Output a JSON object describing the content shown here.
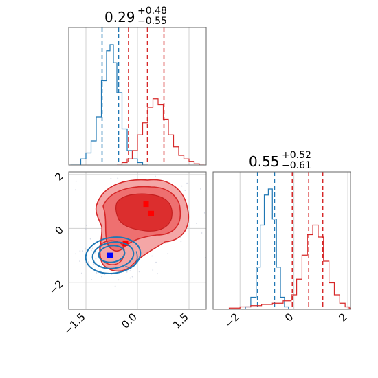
{
  "chart_data": [
    {
      "panel": "marginal-1",
      "type": "histogram",
      "title": {
        "median": "0.29",
        "plus": "+0.48",
        "minus": "−0.55"
      },
      "xlim": [
        -2.0,
        2.0
      ],
      "grid": true,
      "series": [
        {
          "name": "",
          "color": "#1f77b4",
          "bins": [
            [
              -1.95,
              0
            ],
            [
              -1.8,
              0
            ],
            [
              -1.65,
              0.05
            ],
            [
              -1.5,
              0.1
            ],
            [
              -1.35,
              0.2
            ],
            [
              -1.2,
              0.4
            ],
            [
              -1.05,
              0.7
            ],
            [
              -0.9,
              0.95
            ],
            [
              -0.8,
              1.0
            ],
            [
              -0.7,
              0.85
            ],
            [
              -0.6,
              0.6
            ],
            [
              -0.45,
              0.3
            ],
            [
              -0.3,
              0.12
            ],
            [
              -0.15,
              0.05
            ],
            [
              0.0,
              0.02
            ],
            [
              0.15,
              0
            ]
          ],
          "quantiles": [
            -1.03,
            -0.55
          ]
        },
        {
          "name": "",
          "color": "#d62728",
          "bins": [
            [
              -0.6,
              0
            ],
            [
              -0.45,
              0.02
            ],
            [
              -0.3,
              0.05
            ],
            [
              -0.15,
              0.12
            ],
            [
              0.0,
              0.25
            ],
            [
              0.15,
              0.35
            ],
            [
              0.3,
              0.48
            ],
            [
              0.45,
              0.55
            ],
            [
              0.6,
              0.5
            ],
            [
              0.75,
              0.38
            ],
            [
              0.9,
              0.25
            ],
            [
              1.05,
              0.15
            ],
            [
              1.2,
              0.08
            ],
            [
              1.35,
              0.05
            ],
            [
              1.5,
              0.03
            ],
            [
              1.65,
              0.01
            ],
            [
              1.8,
              0.0
            ]
          ],
          "quantiles": [
            -0.26,
            0.29,
            0.77
          ]
        }
      ]
    },
    {
      "panel": "joint",
      "type": "scatter",
      "xlim": [
        -2.0,
        2.0
      ],
      "ylim": [
        -3.0,
        2.1
      ],
      "xticks": [
        "−1.5",
        "0.0",
        "1.5"
      ],
      "yticks": [
        "−2",
        "0",
        "2"
      ],
      "grid": true,
      "series": [
        {
          "name": "",
          "color": "#1f77b4",
          "center": [
            -0.75,
            -1.0
          ],
          "spread": [
            0.45,
            0.35
          ]
        },
        {
          "name": "",
          "color": "#d62728",
          "center": [
            0.3,
            0.55
          ],
          "spread": [
            0.85,
            0.85
          ]
        }
      ],
      "markers": [
        {
          "color": "#ff0000",
          "x": 0.25,
          "y": 0.9
        },
        {
          "color": "#ff0000",
          "x": 0.4,
          "y": 0.55
        },
        {
          "color": "#ff0000",
          "x": -0.35,
          "y": -0.55
        },
        {
          "color": "#0000ff",
          "x": -0.8,
          "y": -1.0
        }
      ]
    },
    {
      "panel": "marginal-2",
      "type": "histogram",
      "title": {
        "median": "0.55",
        "plus": "+0.52",
        "minus": "−0.61"
      },
      "xlim": [
        -3.0,
        2.1
      ],
      "xticks": [
        "−2",
        "0",
        "2"
      ],
      "grid": true,
      "series": [
        {
          "name": "",
          "color": "#1f77b4",
          "bins": [
            [
              -2.1,
              0
            ],
            [
              -1.8,
              0.02
            ],
            [
              -1.6,
              0.1
            ],
            [
              -1.4,
              0.35
            ],
            [
              -1.25,
              0.7
            ],
            [
              -1.1,
              0.95
            ],
            [
              -0.95,
              1.0
            ],
            [
              -0.8,
              0.75
            ],
            [
              -0.65,
              0.35
            ],
            [
              -0.5,
              0.1
            ],
            [
              -0.35,
              0.02
            ],
            [
              -0.2,
              0
            ]
          ],
          "quantiles": [
            -1.35,
            -0.72
          ]
        },
        {
          "name": "",
          "color": "#d62728",
          "bins": [
            [
              -2.8,
              0.0
            ],
            [
              -2.4,
              0.01
            ],
            [
              -2.0,
              0.02
            ],
            [
              -1.6,
              0.03
            ],
            [
              -1.2,
              0.04
            ],
            [
              -0.8,
              0.05
            ],
            [
              -0.4,
              0.07
            ],
            [
              -0.1,
              0.12
            ],
            [
              0.1,
              0.25
            ],
            [
              0.3,
              0.45
            ],
            [
              0.5,
              0.62
            ],
            [
              0.7,
              0.7
            ],
            [
              0.9,
              0.6
            ],
            [
              1.1,
              0.4
            ],
            [
              1.3,
              0.22
            ],
            [
              1.5,
              0.12
            ],
            [
              1.7,
              0.05
            ],
            [
              1.9,
              0.02
            ],
            [
              2.05,
              0.01
            ]
          ],
          "quantiles": [
            -0.06,
            0.55,
            1.07
          ]
        }
      ]
    }
  ]
}
